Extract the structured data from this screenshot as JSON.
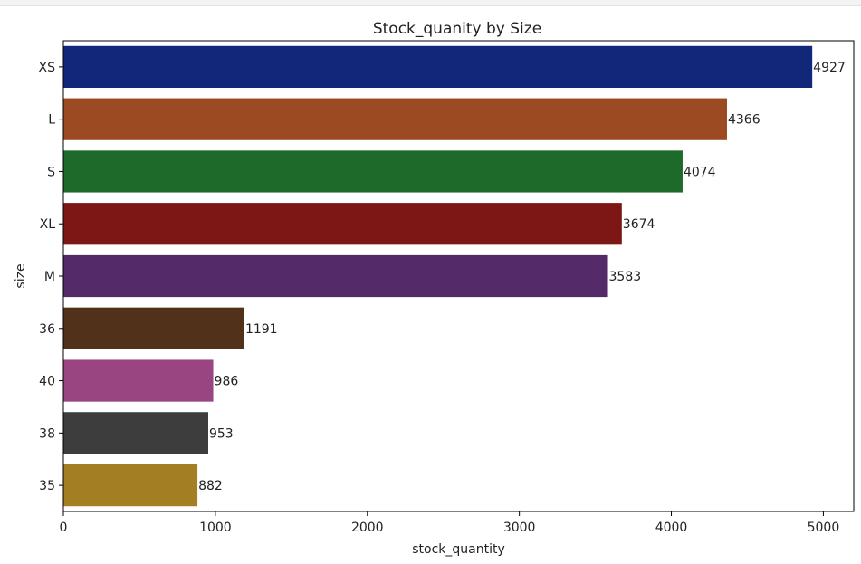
{
  "chart_data": {
    "type": "bar",
    "orientation": "horizontal",
    "title": "Stock_quanity by Size",
    "xlabel": "stock_quantity",
    "ylabel": "size",
    "categories": [
      "XS",
      "L",
      "S",
      "XL",
      "M",
      "36",
      "40",
      "38",
      "35"
    ],
    "values": [
      4927,
      4366,
      4074,
      3674,
      3583,
      1191,
      986,
      953,
      882
    ],
    "xlim": [
      0,
      5200
    ],
    "xticks": [
      0,
      1000,
      2000,
      3000,
      4000,
      5000
    ],
    "colors": [
      "#13277a",
      "#9b4a22",
      "#1d6a2a",
      "#7c1716",
      "#552a68",
      "#52311a",
      "#984582",
      "#3d3d3d",
      "#a37e22"
    ],
    "grid": false,
    "legend": "none"
  }
}
